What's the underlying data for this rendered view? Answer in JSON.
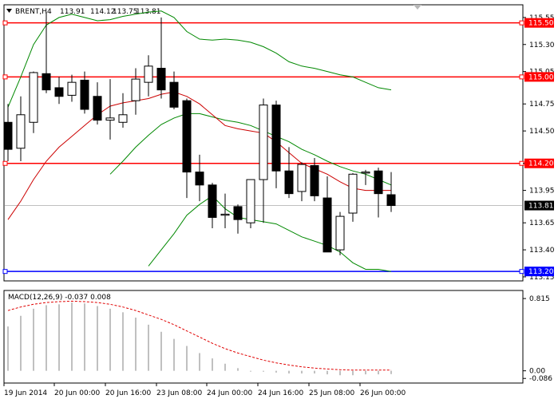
{
  "chart_data": [
    {
      "type": "candlestick",
      "header": {
        "symbol_tf": "BRENT,H4",
        "ohlc": [
          "113.91",
          "114.12",
          "113.75",
          "113.81"
        ]
      },
      "price_ticks": [
        "115.55",
        "115.30",
        "115.05",
        "114.75",
        "114.50",
        "114.20",
        "113.95",
        "113.65",
        "113.40",
        "113.15"
      ],
      "time_labels": [
        "19 Jun 2014",
        "20 Jun 00:00",
        "20 Jun 16:00",
        "23 Jun 08:00",
        "24 Jun 00:00",
        "24 Jun 16:00",
        "25 Jun 08:00",
        "26 Jun 00:00"
      ],
      "current_price": "113.81",
      "ylim": [
        113.12,
        115.66
      ],
      "candles": [
        {
          "o": 114.58,
          "h": 114.75,
          "l": 114.22,
          "c": 114.33
        },
        {
          "o": 114.34,
          "h": 114.82,
          "l": 114.22,
          "c": 114.65
        },
        {
          "o": 114.58,
          "h": 115.05,
          "l": 114.48,
          "c": 115.04
        },
        {
          "o": 115.03,
          "h": 115.6,
          "l": 114.85,
          "c": 114.88
        },
        {
          "o": 114.9,
          "h": 115.0,
          "l": 114.75,
          "c": 114.82
        },
        {
          "o": 114.83,
          "h": 115.02,
          "l": 114.77,
          "c": 114.95
        },
        {
          "o": 114.97,
          "h": 115.05,
          "l": 114.66,
          "c": 114.7
        },
        {
          "o": 114.82,
          "h": 114.95,
          "l": 114.56,
          "c": 114.6
        },
        {
          "o": 114.6,
          "h": 114.98,
          "l": 114.42,
          "c": 114.62
        },
        {
          "o": 114.58,
          "h": 114.85,
          "l": 114.53,
          "c": 114.65
        },
        {
          "o": 114.78,
          "h": 115.08,
          "l": 114.65,
          "c": 114.98
        },
        {
          "o": 114.95,
          "h": 115.2,
          "l": 114.82,
          "c": 115.1
        },
        {
          "o": 115.08,
          "h": 115.55,
          "l": 114.8,
          "c": 114.88
        },
        {
          "o": 114.95,
          "h": 115.05,
          "l": 114.7,
          "c": 114.72
        },
        {
          "o": 114.78,
          "h": 114.8,
          "l": 113.88,
          "c": 114.12
        },
        {
          "o": 114.12,
          "h": 114.28,
          "l": 113.85,
          "c": 114.0
        },
        {
          "o": 114.0,
          "h": 114.02,
          "l": 113.6,
          "c": 113.7
        },
        {
          "o": 113.72,
          "h": 113.92,
          "l": 113.6,
          "c": 113.73
        },
        {
          "o": 113.8,
          "h": 113.82,
          "l": 113.55,
          "c": 113.68
        },
        {
          "o": 113.65,
          "h": 114.05,
          "l": 113.6,
          "c": 114.05
        },
        {
          "o": 114.05,
          "h": 114.8,
          "l": 113.65,
          "c": 114.74
        },
        {
          "o": 114.74,
          "h": 114.78,
          "l": 113.97,
          "c": 114.13
        },
        {
          "o": 114.13,
          "h": 114.35,
          "l": 113.88,
          "c": 113.92
        },
        {
          "o": 113.94,
          "h": 114.21,
          "l": 113.85,
          "c": 114.19
        },
        {
          "o": 114.18,
          "h": 114.25,
          "l": 113.85,
          "c": 113.9
        },
        {
          "o": 113.88,
          "h": 114.08,
          "l": 113.4,
          "c": 113.38
        },
        {
          "o": 113.4,
          "h": 113.75,
          "l": 113.35,
          "c": 113.71
        },
        {
          "o": 113.74,
          "h": 114.11,
          "l": 113.66,
          "c": 114.1
        },
        {
          "o": 114.11,
          "h": 114.14,
          "l": 114.0,
          "c": 114.12
        },
        {
          "o": 114.13,
          "h": 114.16,
          "l": 113.7,
          "c": 113.92
        },
        {
          "o": 113.91,
          "h": 114.12,
          "l": 113.75,
          "c": 113.81
        }
      ],
      "ma_red": [
        113.68,
        113.85,
        114.05,
        114.22,
        114.35,
        114.45,
        114.55,
        114.65,
        114.73,
        114.76,
        114.78,
        114.8,
        114.84,
        114.86,
        114.82,
        114.75,
        114.65,
        114.55,
        114.52,
        114.5,
        114.48,
        114.4,
        114.3,
        114.2,
        114.15,
        114.1,
        114.03,
        113.97,
        113.95,
        113.95,
        113.95
      ],
      "bb_upper": [
        114.72,
        115.0,
        115.3,
        115.48,
        115.55,
        115.58,
        115.55,
        115.52,
        115.53,
        115.56,
        115.58,
        115.6,
        115.61,
        115.55,
        115.42,
        115.35,
        115.34,
        115.35,
        115.34,
        115.32,
        115.28,
        115.22,
        115.14,
        115.1,
        115.08,
        115.05,
        115.02,
        115.0,
        114.95,
        114.9,
        114.88
      ],
      "bb_lower": [
        null,
        null,
        null,
        null,
        null,
        null,
        null,
        null,
        null,
        null,
        null,
        113.25,
        113.4,
        113.55,
        113.72,
        113.82,
        113.9,
        113.78,
        113.7,
        113.68,
        113.66,
        113.64,
        113.58,
        113.52,
        113.48,
        113.44,
        113.38,
        113.28,
        113.22,
        113.22,
        113.2
      ],
      "bb_middle": [
        null,
        null,
        null,
        null,
        null,
        null,
        null,
        null,
        114.1,
        114.22,
        114.35,
        114.46,
        114.56,
        114.62,
        114.66,
        114.66,
        114.63,
        114.6,
        114.58,
        114.55,
        114.5,
        114.45,
        114.4,
        114.33,
        114.28,
        114.22,
        114.17,
        114.13,
        114.1,
        114.05,
        114.0
      ],
      "levels": [
        {
          "value": 115.5,
          "label": "115.50",
          "color": "#ff0000"
        },
        {
          "value": 115.0,
          "label": "115.00",
          "color": "#ff0000"
        },
        {
          "value": 114.2,
          "label": "114.20",
          "color": "#ff0000"
        },
        {
          "value": 113.2,
          "label": "113.20",
          "color": "#0000ff"
        }
      ],
      "colors": {
        "bull_fill": "#ffffff",
        "bear_fill": "#000000",
        "ma_red": "#cc0000",
        "bands": "#008800",
        "current_line": "#c0c0c0"
      }
    },
    {
      "type": "bar",
      "label": "MACD(12,26,9) -0.037 0.008",
      "ticks": [
        "0.815",
        "0.00",
        "-0.086"
      ],
      "ylim": [
        -0.12,
        0.87
      ],
      "values": [
        0.5,
        0.62,
        0.7,
        0.74,
        0.75,
        0.77,
        0.76,
        0.73,
        0.7,
        0.66,
        0.6,
        0.52,
        0.44,
        0.36,
        0.28,
        0.2,
        0.14,
        0.08,
        0.03,
        0.0,
        -0.01,
        -0.02,
        -0.03,
        -0.03,
        -0.03,
        -0.04,
        -0.05,
        -0.05,
        -0.04,
        -0.04,
        -0.037
      ],
      "signal": [
        0.68,
        0.72,
        0.75,
        0.77,
        0.78,
        0.785,
        0.78,
        0.77,
        0.75,
        0.72,
        0.68,
        0.63,
        0.58,
        0.52,
        0.45,
        0.38,
        0.31,
        0.25,
        0.2,
        0.16,
        0.12,
        0.09,
        0.065,
        0.045,
        0.03,
        0.02,
        0.012,
        0.008,
        0.008,
        0.008,
        0.008
      ],
      "colors": {
        "bars": "#c0c0c0",
        "signal": "#e00000"
      }
    }
  ]
}
